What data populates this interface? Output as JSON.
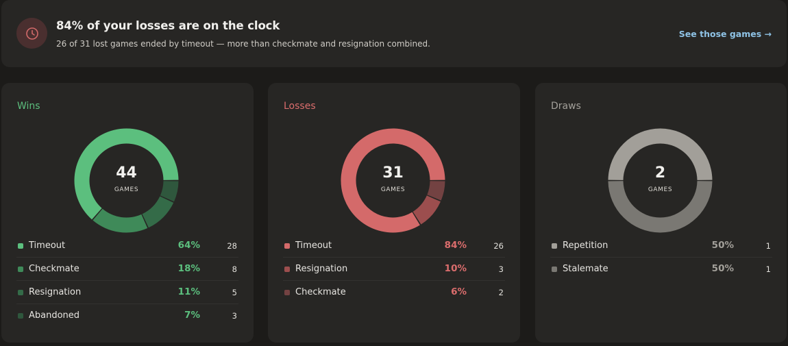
{
  "banner": {
    "icon": "clock-icon",
    "title": "84% of your losses are on the clock",
    "subtitle": "26 of 31 lost games ended by timeout — more than checkmate and resignation combined.",
    "link_label": "See those games →"
  },
  "cards": [
    {
      "key": "wins",
      "title": "Wins",
      "title_color": "#5cbf7e",
      "pct_color": "#5cbf7e",
      "total": "44",
      "total_label": "GAMES",
      "rows": [
        {
          "label": "Timeout",
          "pct": "64%",
          "count": "28",
          "color": "#5cbf7e"
        },
        {
          "label": "Checkmate",
          "pct": "18%",
          "count": "8",
          "color": "#3f8a59"
        },
        {
          "label": "Resignation",
          "pct": "11%",
          "count": "5",
          "color": "#346b48"
        },
        {
          "label": "Abandoned",
          "pct": "7%",
          "count": "3",
          "color": "#2f573d"
        }
      ]
    },
    {
      "key": "losses",
      "title": "Losses",
      "title_color": "#db6d6d",
      "pct_color": "#db6d6d",
      "total": "31",
      "total_label": "GAMES",
      "rows": [
        {
          "label": "Timeout",
          "pct": "84%",
          "count": "26",
          "color": "#d46a6a"
        },
        {
          "label": "Resignation",
          "pct": "10%",
          "count": "3",
          "color": "#9c4e4e"
        },
        {
          "label": "Checkmate",
          "pct": "6%",
          "count": "2",
          "color": "#734242"
        }
      ]
    },
    {
      "key": "draws",
      "title": "Draws",
      "title_color": "#a3a09a",
      "pct_color": "#a3a09a",
      "total": "2",
      "total_label": "GAMES",
      "rows": [
        {
          "label": "Repetition",
          "pct": "50%",
          "count": "1",
          "color": "#a29f99"
        },
        {
          "label": "Stalemate",
          "pct": "50%",
          "count": "1",
          "color": "#7a7873"
        }
      ]
    }
  ]
}
